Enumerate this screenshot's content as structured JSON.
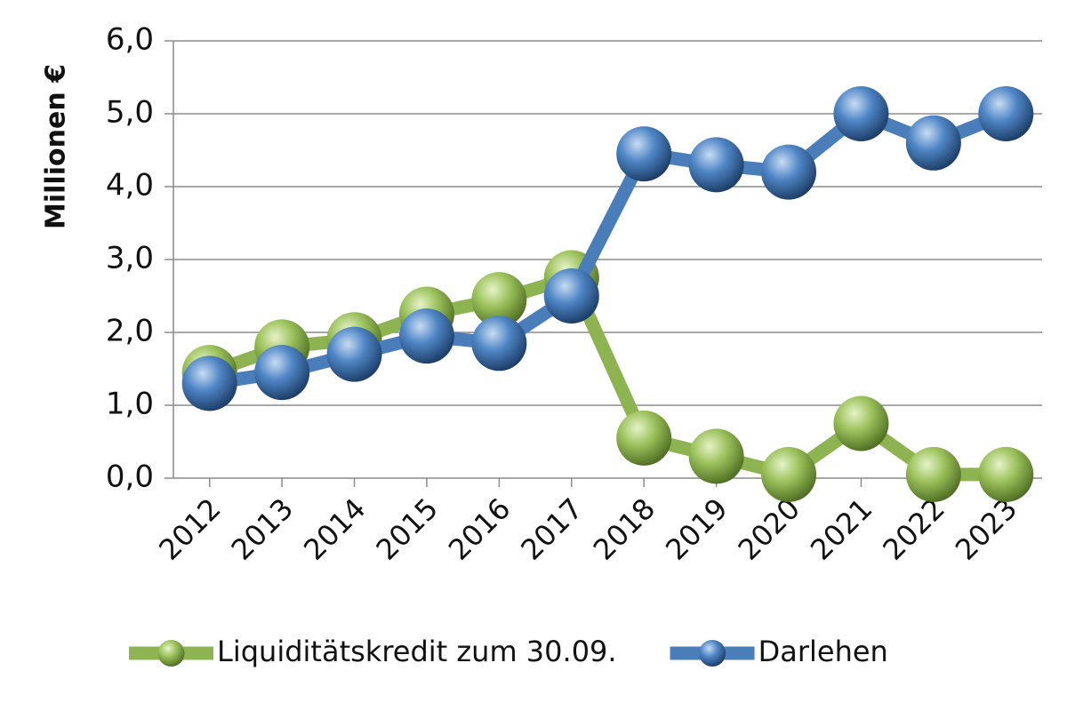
{
  "chart_data": {
    "type": "line",
    "y_label": "Millionen €",
    "categories": [
      "2012",
      "2013",
      "2014",
      "2015",
      "2016",
      "2017",
      "2018",
      "2019",
      "2020",
      "2021",
      "2022",
      "2023"
    ],
    "series": [
      {
        "name": "Liquiditätskredit zum 30.09.",
        "color": "#8db451",
        "values": [
          1.45,
          1.8,
          1.9,
          2.25,
          2.45,
          2.75,
          0.55,
          0.3,
          0.05,
          0.75,
          0.05,
          0.05
        ]
      },
      {
        "name": "Darlehen",
        "color": "#4a7ebb",
        "values": [
          1.3,
          1.45,
          1.7,
          1.95,
          1.85,
          2.5,
          4.45,
          4.3,
          4.2,
          5.0,
          4.6,
          5.0
        ]
      }
    ],
    "ylim": [
      0,
      6
    ],
    "yticks": [
      {
        "value": 0,
        "label": "0,0"
      },
      {
        "value": 1,
        "label": "1,0"
      },
      {
        "value": 2,
        "label": "2,0"
      },
      {
        "value": 3,
        "label": "3,0"
      },
      {
        "value": 4,
        "label": "4,0"
      },
      {
        "value": 5,
        "label": "5,0"
      },
      {
        "value": 6,
        "label": "6,0"
      }
    ],
    "grid": true,
    "legend": "bottom"
  }
}
